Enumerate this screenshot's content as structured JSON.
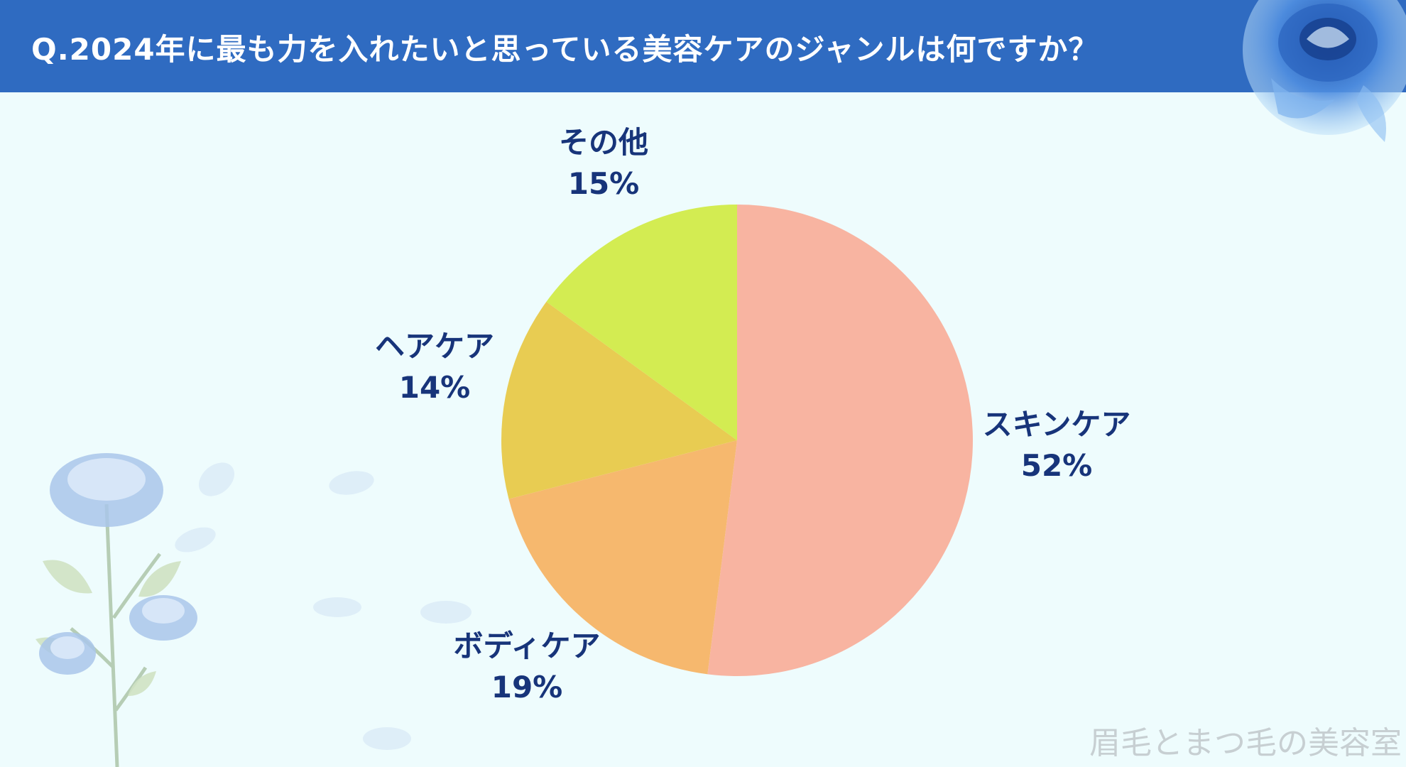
{
  "header": {
    "title": "Q.2024年に最も力を入れたいと思っている美容ケアのジャンルは何ですか？"
  },
  "colors": {
    "header_bg": "#2f6bc1",
    "page_bg": "#eefcfd",
    "label": "#17347a"
  },
  "chart_data": {
    "type": "pie",
    "slices": [
      {
        "label": "スキンケア",
        "value": 52,
        "value_label": "52%",
        "color": "#f8b4a1"
      },
      {
        "label": "ボディケア",
        "value": 19,
        "value_label": "19%",
        "color": "#f6b86e"
      },
      {
        "label": "ヘアケア",
        "value": 14,
        "value_label": "14%",
        "color": "#e8cc52"
      },
      {
        "label": "その他",
        "value": 15,
        "value_label": "15%",
        "color": "#d3ec52"
      }
    ]
  },
  "watermark": "眉毛とまつ毛の美容室",
  "decorations": {
    "top_right": "blue-rose-icon",
    "bottom_left": "blue-rose-branch-icon"
  }
}
